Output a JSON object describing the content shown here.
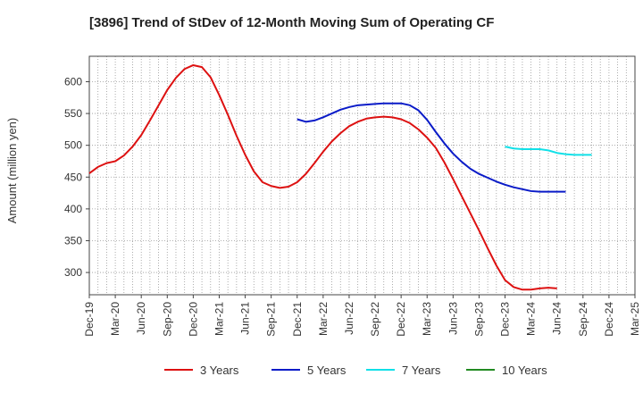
{
  "chart_data": {
    "type": "line",
    "title": "[3896]  Trend of StDev of 12-Month Moving Sum of Operating CF",
    "xlabel": "",
    "ylabel": "Amount (million yen)",
    "ylim": [
      265,
      640
    ],
    "yticks": [
      300,
      350,
      400,
      450,
      500,
      550,
      600
    ],
    "x_categories": [
      "Dec-19",
      "Mar-20",
      "Jun-20",
      "Sep-20",
      "Dec-20",
      "Mar-21",
      "Jun-21",
      "Sep-21",
      "Dec-21",
      "Mar-22",
      "Jun-22",
      "Sep-22",
      "Dec-22",
      "Mar-23",
      "Jun-23",
      "Sep-23",
      "Dec-23",
      "Mar-24",
      "Jun-24",
      "Sep-24",
      "Dec-24",
      "Mar-25"
    ],
    "grid": true,
    "series": [
      {
        "name": "3 Years",
        "color": "#dd1111",
        "start_index": 0,
        "values": [
          456,
          466,
          472,
          475,
          484,
          498,
          516,
          539,
          563,
          587,
          606,
          620,
          626,
          623,
          607,
          579,
          548,
          515,
          485,
          459,
          442,
          436,
          433,
          435,
          442,
          455,
          472,
          490,
          506,
          519,
          530,
          537,
          542,
          544,
          545,
          544,
          541,
          535,
          525,
          512,
          496,
          473,
          447,
          420,
          393,
          366,
          338,
          311,
          288,
          277,
          273,
          273,
          275,
          276,
          275
        ]
      },
      {
        "name": "5 Years",
        "color": "#0a1bc8",
        "start_index": 24,
        "values": [
          541,
          537,
          539,
          544,
          550,
          556,
          560,
          563,
          564,
          565,
          566,
          566,
          566,
          563,
          555,
          540,
          521,
          503,
          487,
          474,
          463,
          455,
          449,
          443,
          438,
          434,
          431,
          428,
          427,
          427,
          427,
          427
        ]
      },
      {
        "name": "7 Years",
        "color": "#11e0e8",
        "start_index": 48,
        "values": [
          498,
          495,
          494,
          494,
          494,
          492,
          488,
          486,
          485,
          485,
          485
        ]
      },
      {
        "name": "10 Years",
        "color": "#228b22",
        "start_index": 0,
        "values": []
      }
    ]
  }
}
